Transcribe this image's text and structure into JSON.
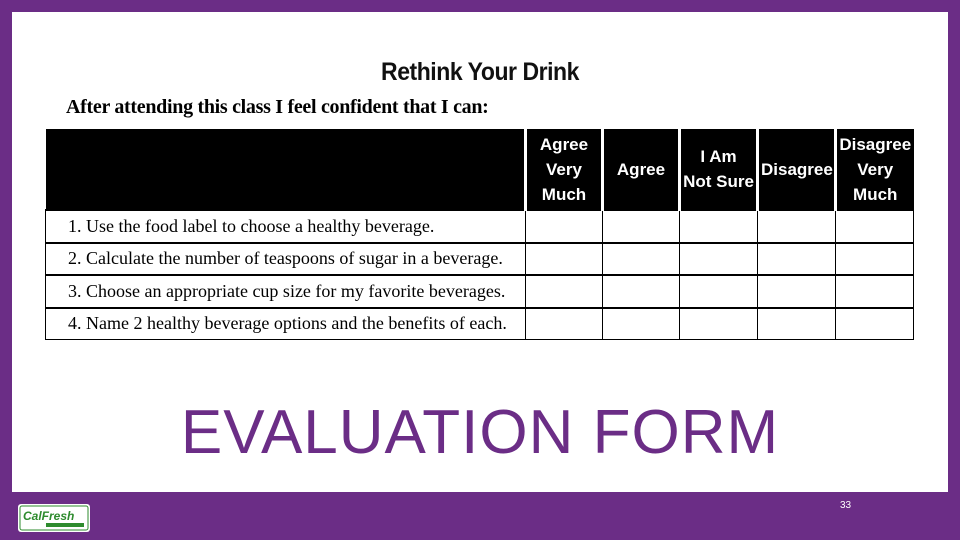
{
  "form": {
    "title": "Rethink Your Drink",
    "subtitle": "After attending this class I feel confident that I can:",
    "columns": [
      "Agree\nVery\nMuch",
      "Agree",
      "I Am\nNot Sure",
      "Disagree",
      "Disagree\nVery\nMuch"
    ],
    "statements": [
      "1. Use the food label to choose a healthy beverage.",
      "2. Calculate the number of teaspoons of sugar in a beverage.",
      "3. Choose an appropriate cup size for my favorite beverages.",
      "4. Name 2 healthy beverage options and the benefits of each."
    ]
  },
  "slide": {
    "heading": "EVALUATION FORM",
    "page_number": "33"
  },
  "logo": {
    "text": "CalFresh",
    "icon": "calfresh-logo-icon"
  },
  "colors": {
    "frame": "#6b2d86",
    "heading": "#6b2d86",
    "logo_green": "#2e8b2e"
  }
}
